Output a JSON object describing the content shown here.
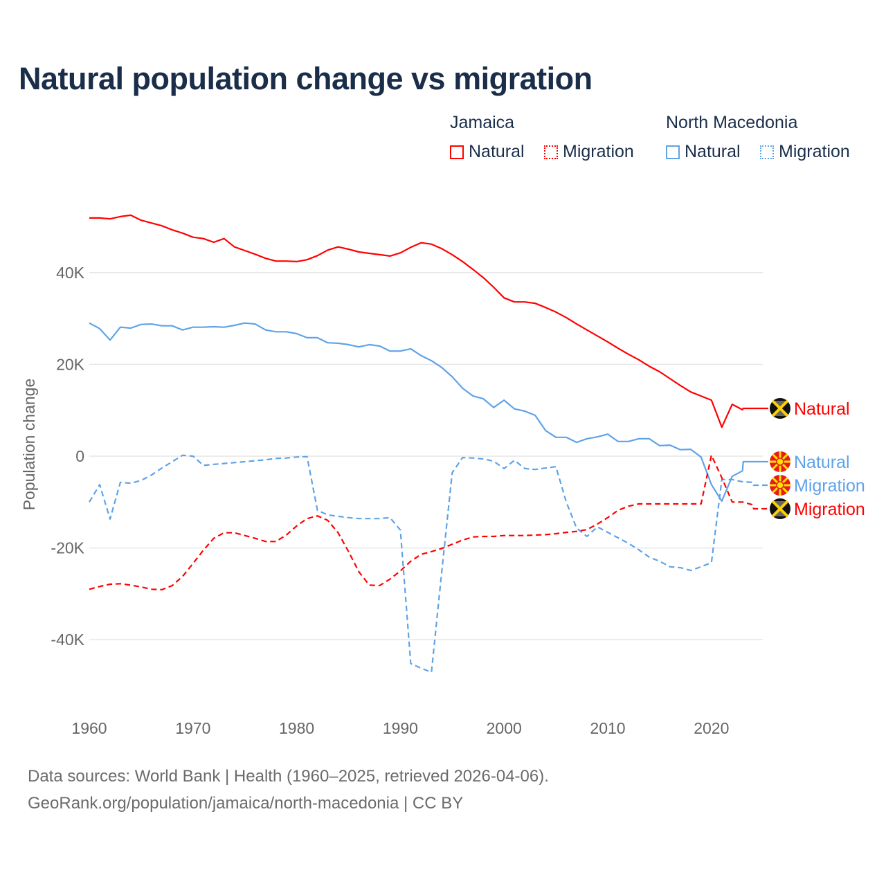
{
  "title": "Natural population change vs migration",
  "legend": [
    {
      "country": "Jamaica",
      "items": [
        {
          "label": "Natural",
          "color": "#ff0000",
          "style": "solid"
        },
        {
          "label": "Migration",
          "color": "#ff0000",
          "style": "dotted"
        }
      ]
    },
    {
      "country": "North Macedonia",
      "items": [
        {
          "label": "Natural",
          "color": "#5ea3e8",
          "style": "solid"
        },
        {
          "label": "Migration",
          "color": "#5ea3e8",
          "style": "dotted"
        }
      ]
    }
  ],
  "footer": {
    "line1": "Data sources: World Bank | Health (1960–2025, retrieved 2026-04-06).",
    "line2": "GeoRank.org/population/jamaica/north-macedonia | CC BY"
  },
  "chart_data": {
    "type": "line",
    "title": "Natural population change vs migration",
    "xlabel": "",
    "ylabel": "Population change",
    "xlim": [
      1960,
      2025
    ],
    "ylim": [
      -50000,
      55000
    ],
    "grid": true,
    "legend_position": "top-right",
    "x_ticks": [
      1960,
      1970,
      1980,
      1990,
      2000,
      2010,
      2020
    ],
    "x_tick_labels": [
      "1960",
      "1970",
      "1980",
      "1990",
      "2000",
      "2010",
      "2020"
    ],
    "y_ticks": [
      40000,
      20000,
      0,
      -20000,
      -40000
    ],
    "y_tick_labels": [
      "40K",
      "20K",
      "0",
      "-20K",
      "-40K"
    ],
    "x_start": 1960,
    "series": [
      {
        "name": "Jamaica Natural",
        "end_label": "Natural",
        "flag": "jamaica-flag",
        "color": "#ff0000",
        "dash": false,
        "values": [
          51900,
          51900,
          51700,
          52200,
          52500,
          51400,
          50800,
          50200,
          49300,
          48600,
          47700,
          47400,
          46600,
          47400,
          45600,
          44800,
          44000,
          43100,
          42500,
          42500,
          42400,
          42800,
          43700,
          44900,
          45600,
          45100,
          44500,
          44200,
          43900,
          43600,
          44300,
          45500,
          46500,
          46200,
          45200,
          43900,
          42400,
          40700,
          38900,
          36800,
          34500,
          33600,
          33600,
          33300,
          32400,
          31400,
          30200,
          28800,
          27500,
          26200,
          24900,
          23500,
          22200,
          21000,
          19600,
          18400,
          16900,
          15400,
          14000,
          13100,
          12200,
          6300,
          11300,
          10100
        ]
      },
      {
        "name": "North Macedonia Natural",
        "end_label": "Natural",
        "flag": "north-macedonia-flag",
        "color": "#5ea3e8",
        "dash": false,
        "values": [
          29000,
          27800,
          25300,
          28100,
          27900,
          28700,
          28800,
          28400,
          28400,
          27500,
          28100,
          28100,
          28200,
          28100,
          28500,
          29000,
          28800,
          27500,
          27100,
          27100,
          26700,
          25800,
          25800,
          24700,
          24600,
          24300,
          23800,
          24300,
          24000,
          22900,
          22900,
          23400,
          21900,
          20800,
          19300,
          17300,
          14800,
          13100,
          12500,
          10600,
          12200,
          10300,
          9800,
          8900,
          5600,
          4100,
          4100,
          3000,
          3800,
          4200,
          4800,
          3200,
          3200,
          3800,
          3800,
          2300,
          2400,
          1400,
          1500,
          -200,
          -6200,
          -9800,
          -4400,
          -3200
        ]
      },
      {
        "name": "North Macedonia Migration",
        "end_label": "Migration",
        "flag": "north-macedonia-flag",
        "color": "#5ea3e8",
        "dash": true,
        "values": [
          -10000,
          -6200,
          -13700,
          -5700,
          -5900,
          -5300,
          -4100,
          -2600,
          -1200,
          200,
          0,
          -2000,
          -1800,
          -1600,
          -1400,
          -1200,
          -1000,
          -800,
          -500,
          -400,
          -200,
          -100,
          -11800,
          -12800,
          -13100,
          -13400,
          -13600,
          -13600,
          -13600,
          -13400,
          -16100,
          -45200,
          -46200,
          -47100,
          -25000,
          -3600,
          -300,
          -400,
          -600,
          -1100,
          -2700,
          -900,
          -2700,
          -2900,
          -2600,
          -2300,
          -10000,
          -15700,
          -17500,
          -15400,
          -16600,
          -17800,
          -19000,
          -20400,
          -22000,
          -22900,
          -24100,
          -24300,
          -24900,
          -24100,
          -23200,
          -5100,
          -5100,
          -5600,
          -5700
        ]
      },
      {
        "name": "Jamaica Migration",
        "end_label": "Migration",
        "flag": "jamaica-flag",
        "color": "#ff0000",
        "dash": true,
        "values": [
          -29000,
          -28400,
          -27900,
          -27800,
          -28100,
          -28500,
          -29000,
          -29100,
          -28200,
          -26200,
          -23400,
          -20500,
          -17900,
          -16700,
          -16700,
          -17300,
          -17900,
          -18600,
          -18600,
          -17200,
          -15200,
          -13600,
          -13000,
          -14000,
          -16700,
          -20800,
          -25200,
          -28100,
          -28200,
          -26800,
          -25000,
          -22900,
          -21400,
          -20800,
          -20100,
          -19200,
          -18300,
          -17600,
          -17500,
          -17500,
          -17300,
          -17300,
          -17300,
          -17200,
          -17100,
          -16900,
          -16600,
          -16400,
          -16000,
          -14800,
          -13400,
          -11800,
          -10900,
          -10400,
          -10400,
          -10400,
          -10400,
          -10400,
          -10400,
          -10400,
          200,
          -4700,
          -10000,
          -10000,
          -10600
        ]
      }
    ]
  }
}
